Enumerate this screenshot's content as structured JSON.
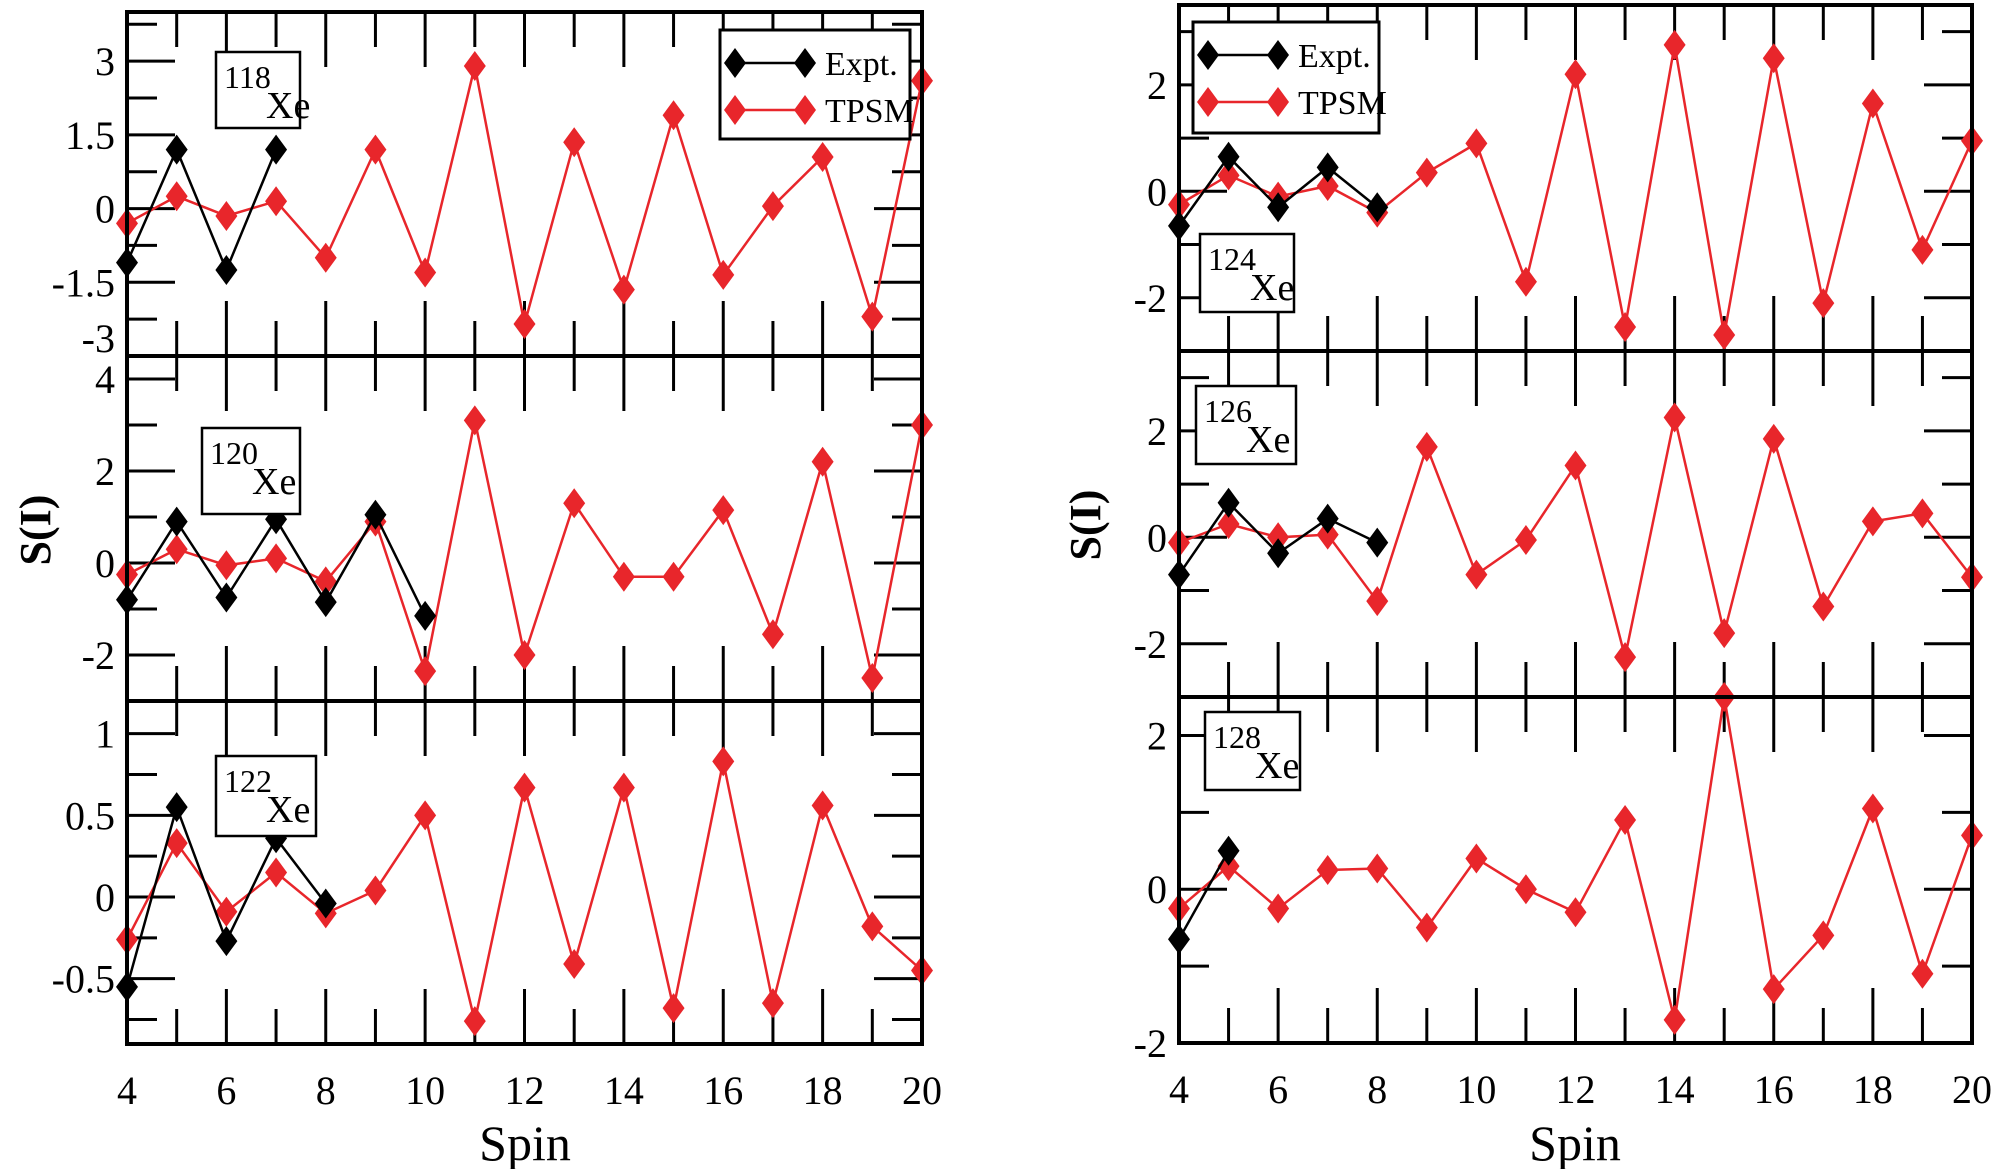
{
  "chart_data": [
    {
      "type": "line",
      "nucleus_mass": "118",
      "nucleus_element": "Xe",
      "xlabel": "Spin",
      "ylabel": "S(I)",
      "xlim": [
        4,
        20
      ],
      "ylim": [
        -3,
        4
      ],
      "xticks": [
        4,
        6,
        8,
        10,
        12,
        14,
        16,
        18,
        20
      ],
      "yticks": [
        -3,
        -1.5,
        0,
        1.5,
        3
      ],
      "ytick_labels": [
        "-3",
        "-1.5",
        "0",
        "1.5",
        "3"
      ],
      "legend": {
        "placement": "top-right",
        "entries": [
          "Expt.",
          "TPSM"
        ]
      },
      "series": [
        {
          "name": "Expt.",
          "color": "#000000",
          "x": [
            4,
            5,
            6,
            7
          ],
          "y": [
            -1.1,
            1.2,
            -1.25,
            1.2
          ]
        },
        {
          "name": "TPSM",
          "color": "#e8262b",
          "x": [
            4,
            5,
            6,
            7,
            8,
            9,
            10,
            11,
            12,
            13,
            14,
            15,
            16,
            17,
            18,
            19,
            20
          ],
          "y": [
            -0.3,
            0.25,
            -0.15,
            0.15,
            -1.0,
            1.2,
            -1.3,
            2.9,
            -2.35,
            1.35,
            -1.65,
            1.9,
            -1.35,
            0.05,
            1.05,
            -2.2,
            2.6
          ]
        }
      ]
    },
    {
      "type": "line",
      "nucleus_mass": "120",
      "nucleus_element": "Xe",
      "xlabel": "Spin",
      "ylabel": "S(I)",
      "xlim": [
        4,
        20
      ],
      "ylim": [
        -3,
        4.5
      ],
      "xticks": [
        4,
        6,
        8,
        10,
        12,
        14,
        16,
        18,
        20
      ],
      "yticks": [
        -2,
        0,
        2,
        4
      ],
      "ytick_labels": [
        "-2",
        "0",
        "2",
        "4"
      ],
      "series": [
        {
          "name": "Expt.",
          "color": "#000000",
          "x": [
            4,
            5,
            6,
            7,
            8,
            9,
            10
          ],
          "y": [
            -0.8,
            0.9,
            -0.75,
            0.95,
            -0.85,
            1.05,
            -1.15
          ]
        },
        {
          "name": "TPSM",
          "color": "#e8262b",
          "x": [
            4,
            5,
            6,
            7,
            8,
            9,
            10,
            11,
            12,
            13,
            14,
            15,
            16,
            17,
            18,
            19,
            20
          ],
          "y": [
            -0.25,
            0.3,
            -0.05,
            0.1,
            -0.4,
            0.9,
            -2.35,
            3.1,
            -2.0,
            1.3,
            -0.3,
            -0.3,
            1.15,
            -1.55,
            2.2,
            -2.5,
            3.0
          ]
        }
      ]
    },
    {
      "type": "line",
      "nucleus_mass": "122",
      "nucleus_element": "Xe",
      "xlabel": "Spin",
      "ylabel": "S(I)",
      "xlim": [
        4,
        20
      ],
      "ylim": [
        -0.9,
        1.2
      ],
      "xticks": [
        4,
        6,
        8,
        10,
        12,
        14,
        16,
        18,
        20
      ],
      "xtick_labels": [
        "4",
        "6",
        "8",
        "10",
        "12",
        "14",
        "16",
        "18",
        "20"
      ],
      "yticks": [
        -0.5,
        0,
        0.5,
        1
      ],
      "ytick_labels": [
        "-0.5",
        "0",
        "0.5",
        "1"
      ],
      "series": [
        {
          "name": "Expt.",
          "color": "#000000",
          "x": [
            4,
            5,
            6,
            7,
            8
          ],
          "y": [
            -0.55,
            0.55,
            -0.27,
            0.36,
            -0.04
          ]
        },
        {
          "name": "TPSM",
          "color": "#e8262b",
          "x": [
            4,
            5,
            6,
            7,
            8,
            9,
            10,
            11,
            12,
            13,
            14,
            15,
            16,
            17,
            18,
            19,
            20
          ],
          "y": [
            -0.26,
            0.33,
            -0.09,
            0.15,
            -0.1,
            0.04,
            0.5,
            -0.76,
            0.67,
            -0.41,
            0.67,
            -0.68,
            0.83,
            -0.65,
            0.56,
            -0.18,
            -0.45
          ]
        }
      ]
    },
    {
      "type": "line",
      "nucleus_mass": "124",
      "nucleus_element": "Xe",
      "xlabel": "Spin",
      "ylabel": "S(I)",
      "xlim": [
        4,
        20
      ],
      "ylim": [
        -3,
        3.5
      ],
      "xticks": [
        4,
        6,
        8,
        10,
        12,
        14,
        16,
        18,
        20
      ],
      "yticks": [
        -2,
        0,
        2
      ],
      "ytick_labels": [
        "-2",
        "0",
        "2"
      ],
      "legend": {
        "placement": "top-left",
        "entries": [
          "Expt.",
          "TPSM"
        ]
      },
      "series": [
        {
          "name": "Expt.",
          "color": "#000000",
          "x": [
            4,
            5,
            6,
            7,
            8
          ],
          "y": [
            -0.65,
            0.65,
            -0.3,
            0.45,
            -0.3
          ]
        },
        {
          "name": "TPSM",
          "color": "#e8262b",
          "x": [
            4,
            5,
            6,
            7,
            8,
            9,
            10,
            11,
            12,
            13,
            14,
            15,
            16,
            17,
            18,
            19,
            20
          ],
          "y": [
            -0.25,
            0.3,
            -0.1,
            0.1,
            -0.4,
            0.35,
            0.9,
            -1.7,
            2.2,
            -2.55,
            2.75,
            -2.7,
            2.5,
            -2.1,
            1.65,
            -1.1,
            0.95
          ]
        }
      ]
    },
    {
      "type": "line",
      "nucleus_mass": "126",
      "nucleus_element": "Xe",
      "xlabel": "Spin",
      "ylabel": "S(I)",
      "xlim": [
        4,
        20
      ],
      "ylim": [
        -3,
        3.5
      ],
      "xticks": [
        4,
        6,
        8,
        10,
        12,
        14,
        16,
        18,
        20
      ],
      "yticks": [
        -2,
        0,
        2
      ],
      "ytick_labels": [
        "-2",
        "0",
        "2"
      ],
      "series": [
        {
          "name": "Expt.",
          "color": "#000000",
          "x": [
            4,
            5,
            6,
            7,
            8
          ],
          "y": [
            -0.7,
            0.65,
            -0.3,
            0.35,
            -0.1
          ]
        },
        {
          "name": "TPSM",
          "color": "#e8262b",
          "x": [
            4,
            5,
            6,
            7,
            8,
            9,
            10,
            11,
            12,
            13,
            14,
            15,
            16,
            17,
            18,
            19,
            20
          ],
          "y": [
            -0.1,
            0.25,
            0.0,
            0.05,
            -1.2,
            1.7,
            -0.7,
            -0.05,
            1.35,
            -2.25,
            2.25,
            -1.8,
            1.85,
            -1.3,
            0.3,
            0.45,
            -0.75
          ]
        }
      ]
    },
    {
      "type": "line",
      "nucleus_mass": "128",
      "nucleus_element": "Xe",
      "xlabel": "Spin",
      "ylabel": "S(I)",
      "xlim": [
        4,
        20
      ],
      "ylim": [
        -2,
        2.5
      ],
      "xticks": [
        4,
        6,
        8,
        10,
        12,
        14,
        16,
        18,
        20
      ],
      "xtick_labels": [
        "4",
        "6",
        "8",
        "10",
        "12",
        "14",
        "16",
        "18",
        "20"
      ],
      "yticks": [
        -2,
        0,
        2
      ],
      "ytick_labels": [
        "-2",
        "0",
        "2"
      ],
      "series": [
        {
          "name": "Expt.",
          "color": "#000000",
          "x": [
            4,
            5
          ],
          "y": [
            -0.65,
            0.5
          ]
        },
        {
          "name": "TPSM",
          "color": "#e8262b",
          "x": [
            4,
            5,
            6,
            7,
            8,
            9,
            10,
            11,
            12,
            13,
            14,
            15,
            16,
            17,
            18,
            19,
            20
          ],
          "y": [
            -0.25,
            0.3,
            -0.25,
            0.25,
            0.27,
            -0.5,
            0.4,
            0.0,
            -0.3,
            0.9,
            -1.7,
            2.5,
            -1.3,
            -0.6,
            1.05,
            -1.1,
            0.7
          ]
        }
      ]
    }
  ],
  "labels": {
    "left_ylabel": "S(I)",
    "right_ylabel": "S(I)",
    "left_xlabel": "Spin",
    "right_xlabel": "Spin",
    "legend_expt": "Expt.",
    "legend_tpsm": "TPSM"
  }
}
